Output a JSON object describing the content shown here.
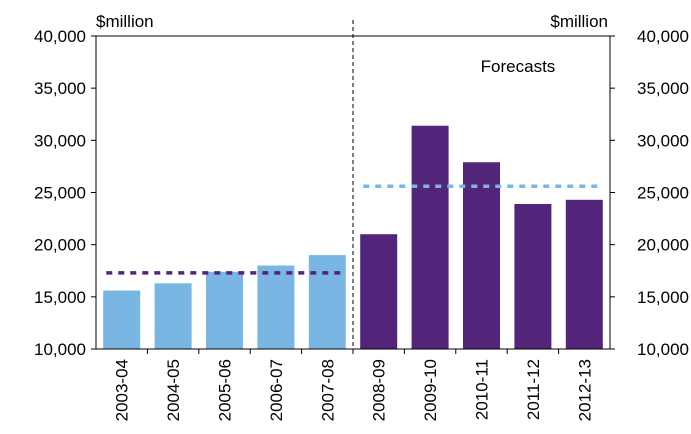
{
  "chart_data": {
    "type": "bar",
    "title": "",
    "xlabel": "",
    "left_axis_unit": "$million",
    "right_axis_unit": "$million",
    "categories": [
      "2003-04",
      "2004-05",
      "2005-06",
      "2006-07",
      "2007-08",
      "2008-09",
      "2009-10",
      "2010-11",
      "2011-12",
      "2012-13"
    ],
    "values": [
      15600,
      16300,
      17400,
      18000,
      19000,
      21000,
      31400,
      27900,
      23900,
      24300
    ],
    "bar_colors": [
      "#7ab6e3",
      "#7ab6e3",
      "#7ab6e3",
      "#7ab6e3",
      "#7ab6e3",
      "#52247a",
      "#52247a",
      "#52247a",
      "#52247a",
      "#52247a"
    ],
    "ylim": [
      10000,
      40000
    ],
    "yticks": [
      10000,
      15000,
      20000,
      25000,
      30000,
      35000,
      40000
    ],
    "ytick_labels": [
      "10,000",
      "15,000",
      "20,000",
      "25,000",
      "30,000",
      "35,000",
      "40,000"
    ],
    "grid": false,
    "forecast_label": "Forecasts",
    "forecast_divider_after_category": "2007-08",
    "reference_lines": [
      {
        "from": "2003-04",
        "to": "2007-08",
        "value": 17300,
        "color": "#52247a",
        "style": "dashed"
      },
      {
        "from": "2008-09",
        "to": "2012-13",
        "value": 25600,
        "color": "#7ab6e3",
        "style": "dashed"
      }
    ]
  }
}
